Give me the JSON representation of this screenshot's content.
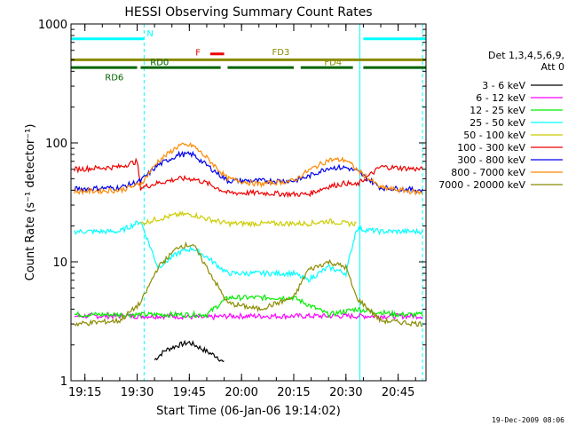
{
  "chart_data": {
    "type": "line",
    "title": "HESSI Observing Summary Count Rates",
    "xlabel": "Start Time (06-Jan-06 19:14:02)",
    "ylabel": "Count Rate (s⁻¹ detector⁻¹)",
    "yscale": "log",
    "ylim": [
      1,
      1000
    ],
    "xlim": [
      "19:11",
      "20:53"
    ],
    "x_ticks": [
      "19:15",
      "19:30",
      "19:45",
      "20:00",
      "20:15",
      "20:30",
      "20:45"
    ],
    "y_ticks": [
      "1",
      "10",
      "100",
      "1000"
    ],
    "legend_position": "right",
    "legend_header": [
      "Det 1,3,4,5,6,9,",
      "Att 0"
    ],
    "timestamp": "19-Dec-2009 08:06",
    "series": [
      {
        "name": "3 - 6 keV",
        "color": "#000000",
        "x": [
          "19:35",
          "19:38",
          "19:42",
          "19:45",
          "19:48",
          "19:51",
          "19:53",
          "19:55"
        ],
        "values": [
          1.5,
          1.8,
          2.0,
          2.1,
          1.9,
          1.7,
          1.6,
          1.4
        ]
      },
      {
        "name": "6 - 12 keV",
        "color": "#ff00ff",
        "x": [
          "19:12",
          "19:25",
          "19:40",
          "19:50",
          "19:56",
          "20:10",
          "20:22",
          "20:32",
          "20:45",
          "20:52"
        ],
        "values": [
          3.5,
          3.5,
          3.5,
          3.4,
          3.5,
          3.5,
          3.5,
          3.5,
          3.5,
          3.5
        ]
      },
      {
        "name": "12 - 25 keV",
        "color": "#00ee00",
        "x": [
          "19:12",
          "19:30",
          "19:40",
          "19:50",
          "19:56",
          "20:05",
          "20:15",
          "20:25",
          "20:33",
          "20:45",
          "20:52"
        ],
        "values": [
          3.6,
          3.6,
          3.6,
          3.6,
          5.0,
          5.0,
          5.0,
          3.6,
          4.0,
          3.6,
          3.6
        ]
      },
      {
        "name": "25 - 50 keV",
        "color": "#00ffff",
        "x": [
          "19:12",
          "19:25",
          "19:31",
          "19:36",
          "19:42",
          "19:46",
          "19:50",
          "19:56",
          "20:05",
          "20:15",
          "20:19",
          "20:25",
          "20:30",
          "20:33",
          "20:40",
          "20:52"
        ],
        "values": [
          18,
          18,
          22,
          9,
          12,
          13,
          11,
          8,
          8,
          8,
          7,
          9,
          8,
          19,
          18,
          18
        ]
      },
      {
        "name": "50 - 100 keV",
        "color": "#cccc00",
        "x": [
          "19:31",
          "19:36",
          "19:42",
          "19:46",
          "19:50",
          "19:56",
          "20:05",
          "20:15",
          "20:19",
          "20:25",
          "20:30",
          "20:33"
        ],
        "values": [
          21,
          23,
          25,
          25,
          23,
          21,
          21,
          21,
          21,
          22,
          21,
          21
        ]
      },
      {
        "name": "100 - 300 keV",
        "color": "#ee0000",
        "x": [
          "19:12",
          "19:25",
          "19:30",
          "19:31",
          "19:36",
          "19:42",
          "19:46",
          "19:50",
          "19:56",
          "20:05",
          "20:15",
          "20:19",
          "20:25",
          "20:30",
          "20:33",
          "20:40",
          "20:52"
        ],
        "values": [
          60,
          63,
          70,
          42,
          46,
          50,
          50,
          46,
          38,
          38,
          37,
          37,
          43,
          46,
          44,
          63,
          60
        ]
      },
      {
        "name": "300 - 800 keV",
        "color": "#0000ee",
        "x": [
          "19:12",
          "19:25",
          "19:31",
          "19:36",
          "19:42",
          "19:46",
          "19:50",
          "19:56",
          "20:05",
          "20:15",
          "20:19",
          "20:25",
          "20:30",
          "20:33",
          "20:40",
          "20:52"
        ],
        "values": [
          41,
          42,
          48,
          65,
          80,
          80,
          65,
          48,
          48,
          48,
          52,
          62,
          62,
          58,
          42,
          40
        ]
      },
      {
        "name": "800 - 7000 keV",
        "color": "#ff8800",
        "x": [
          "19:12",
          "19:25",
          "19:31",
          "19:36",
          "19:42",
          "19:46",
          "19:50",
          "19:56",
          "20:05",
          "20:15",
          "20:19",
          "20:25",
          "20:30",
          "20:33",
          "20:40",
          "20:52"
        ],
        "values": [
          39,
          40,
          45,
          70,
          95,
          95,
          75,
          50,
          45,
          48,
          58,
          72,
          72,
          60,
          42,
          38
        ]
      },
      {
        "name": "7000 - 20000 keV",
        "color": "#8b8b00",
        "x": [
          "19:12",
          "19:25",
          "19:31",
          "19:36",
          "19:42",
          "19:46",
          "19:50",
          "19:56",
          "20:05",
          "20:15",
          "20:19",
          "20:25",
          "20:30",
          "20:33",
          "20:40",
          "20:52"
        ],
        "values": [
          3.0,
          3.2,
          4.5,
          9,
          13.5,
          14,
          9,
          4.5,
          4.0,
          5.0,
          8.5,
          10,
          9,
          5.0,
          3.2,
          3.0
        ]
      }
    ],
    "flags": [
      {
        "label": "N",
        "color": "#00ffff",
        "y": 750,
        "segments": [
          [
            "19:11",
            "19:32"
          ],
          [
            "20:35",
            "20:53"
          ]
        ]
      },
      {
        "label": "F",
        "color": "#ee0000",
        "y": 560,
        "segments": [
          [
            "19:51",
            "19:55"
          ]
        ]
      },
      {
        "label": "FD3",
        "color": "#8b8b00",
        "y": 500,
        "segments": [
          [
            "19:11",
            "20:53"
          ]
        ]
      },
      {
        "label": "FD4",
        "color": "#8b8b00",
        "y": 500,
        "segments": []
      },
      {
        "label": "RD0",
        "color": "#006400",
        "y": 430,
        "segments": [
          [
            "19:31",
            "19:54"
          ],
          [
            "19:56",
            "20:15"
          ],
          [
            "20:17",
            "20:32"
          ],
          [
            "20:35",
            "20:53"
          ]
        ]
      },
      {
        "label": "RD6",
        "color": "#006400",
        "y": 430,
        "segments": [
          [
            "19:11",
            "19:30"
          ]
        ]
      }
    ],
    "vlines": [
      {
        "x": "19:11",
        "style": "solid"
      },
      {
        "x": "19:32",
        "style": "dashed"
      },
      {
        "x": "20:34",
        "style": "solid"
      },
      {
        "x": "20:52",
        "style": "dashed"
      }
    ]
  }
}
